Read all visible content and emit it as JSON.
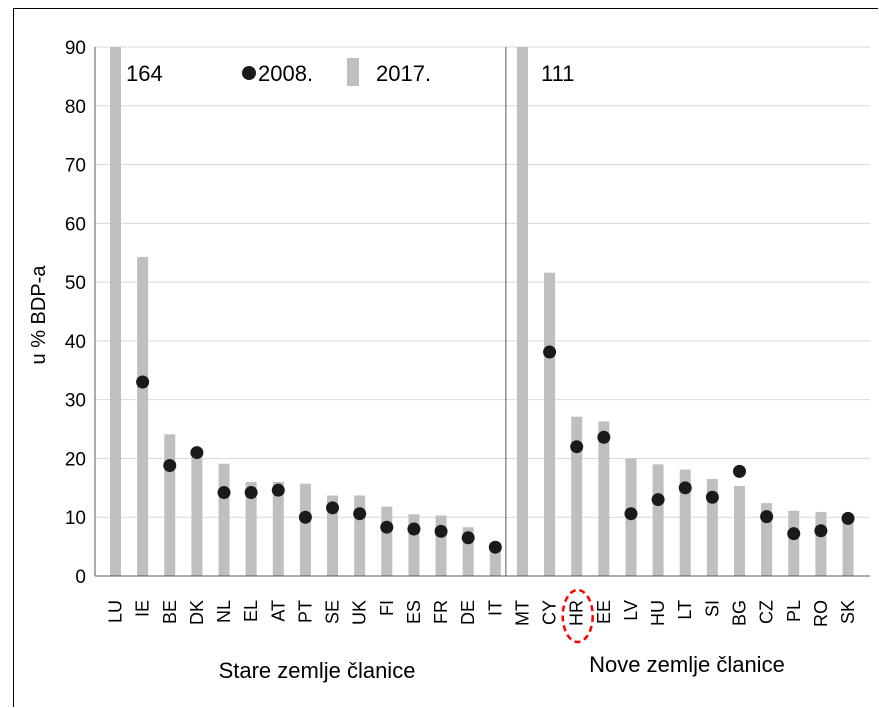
{
  "chart_data": {
    "type": "bar",
    "ylabel": "u % BDP-a",
    "ylim": [
      0,
      90
    ],
    "yticks": [
      0,
      10,
      20,
      30,
      40,
      50,
      60,
      70,
      80,
      90
    ],
    "grid": true,
    "legend": [
      {
        "name": "2008.",
        "marker": "dot"
      },
      {
        "name": "2017.",
        "marker": "bar"
      }
    ],
    "groups": [
      {
        "label": "Stare zemlje članice",
        "categories": [
          "LU",
          "IE",
          "BE",
          "DK",
          "NL",
          "EL",
          "AT",
          "PT",
          "SE",
          "UK",
          "FI",
          "ES",
          "FR",
          "DE",
          "IT"
        ],
        "bars_2017": [
          164,
          54.3,
          24.1,
          21.2,
          19.1,
          16.0,
          16.0,
          15.7,
          13.7,
          13.7,
          11.8,
          10.5,
          10.3,
          8.3,
          5.7
        ],
        "dots_2008": [
          null,
          33.0,
          18.8,
          21.0,
          14.2,
          14.2,
          14.6,
          10.0,
          11.6,
          10.6,
          8.3,
          8.0,
          7.6,
          6.5,
          4.9
        ],
        "annotation": "164"
      },
      {
        "label": "Nove zemlje članice",
        "categories": [
          "MT",
          "CY",
          "HR",
          "EE",
          "LV",
          "HU",
          "LT",
          "SI",
          "BG",
          "CZ",
          "PL",
          "RO",
          "SK"
        ],
        "bars_2017": [
          111,
          51.6,
          27.1,
          26.3,
          20.0,
          19.0,
          18.1,
          16.5,
          15.3,
          12.4,
          11.1,
          10.9,
          9.8
        ],
        "dots_2008": [
          null,
          38.1,
          22.0,
          23.6,
          10.6,
          13.0,
          15.0,
          13.4,
          17.8,
          10.1,
          7.2,
          7.7,
          9.8
        ],
        "annotation": "111"
      }
    ],
    "highlighted": "HR",
    "colors": {
      "bar": "#bfbfbf",
      "dot": "#1a1a1a",
      "grid": "#d9d9d9",
      "highlight": "#ff0000"
    }
  }
}
